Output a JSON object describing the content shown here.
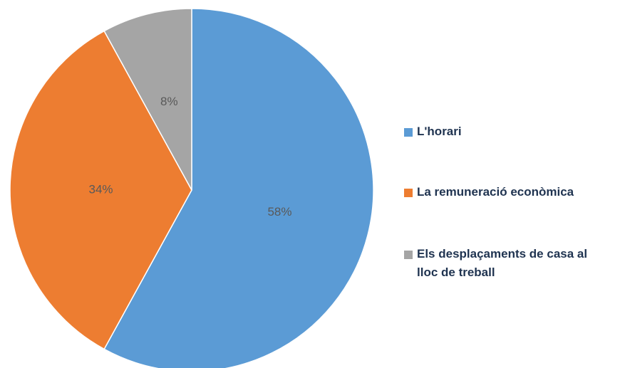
{
  "chart_data": {
    "type": "pie",
    "categories": [
      "L'horari",
      "La remuneració econòmica",
      "Els desplaçaments de casa al lloc de treball"
    ],
    "values": [
      58,
      34,
      8
    ],
    "value_labels": [
      "58%",
      "34%",
      "8%"
    ],
    "colors": [
      "#5b9bd5",
      "#ed7d31",
      "#a5a5a5"
    ],
    "legend": "right"
  }
}
